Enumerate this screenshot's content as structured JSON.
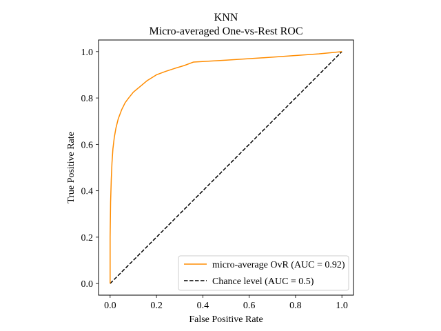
{
  "chart_data": {
    "type": "line",
    "title": "KNN",
    "subtitle": "Micro-averaged One-vs-Rest ROC",
    "xlabel": "False Positive Rate",
    "ylabel": "True Positive Rate",
    "xlim": [
      -0.05,
      1.05
    ],
    "ylim": [
      -0.05,
      1.05
    ],
    "xticks": [
      0.0,
      0.2,
      0.4,
      0.6,
      0.8,
      1.0
    ],
    "xtick_labels": [
      "0.0",
      "0.2",
      "0.4",
      "0.6",
      "0.8",
      "1.0"
    ],
    "yticks": [
      0.0,
      0.2,
      0.4,
      0.6,
      0.8,
      1.0
    ],
    "ytick_labels": [
      "0.0",
      "0.2",
      "0.4",
      "0.6",
      "0.8",
      "1.0"
    ],
    "grid": false,
    "legend_position": "lower-right",
    "series": [
      {
        "name": "micro-average OvR (AUC = 0.92)",
        "color": "#ff8c00",
        "style": "solid",
        "x": [
          0.0,
          0.0,
          0.002,
          0.005,
          0.008,
          0.012,
          0.018,
          0.025,
          0.035,
          0.05,
          0.065,
          0.08,
          0.1,
          0.13,
          0.16,
          0.2,
          0.24,
          0.28,
          0.32,
          0.36,
          0.5,
          0.7,
          0.9,
          1.0
        ],
        "y": [
          0.0,
          0.2,
          0.35,
          0.45,
          0.52,
          0.58,
          0.63,
          0.67,
          0.71,
          0.75,
          0.78,
          0.8,
          0.825,
          0.85,
          0.875,
          0.9,
          0.915,
          0.928,
          0.94,
          0.955,
          0.963,
          0.976,
          0.99,
          1.0
        ]
      },
      {
        "name": "Chance level (AUC = 0.5)",
        "color": "#000000",
        "style": "dashed",
        "x": [
          0.0,
          1.0
        ],
        "y": [
          0.0,
          1.0
        ]
      }
    ]
  }
}
